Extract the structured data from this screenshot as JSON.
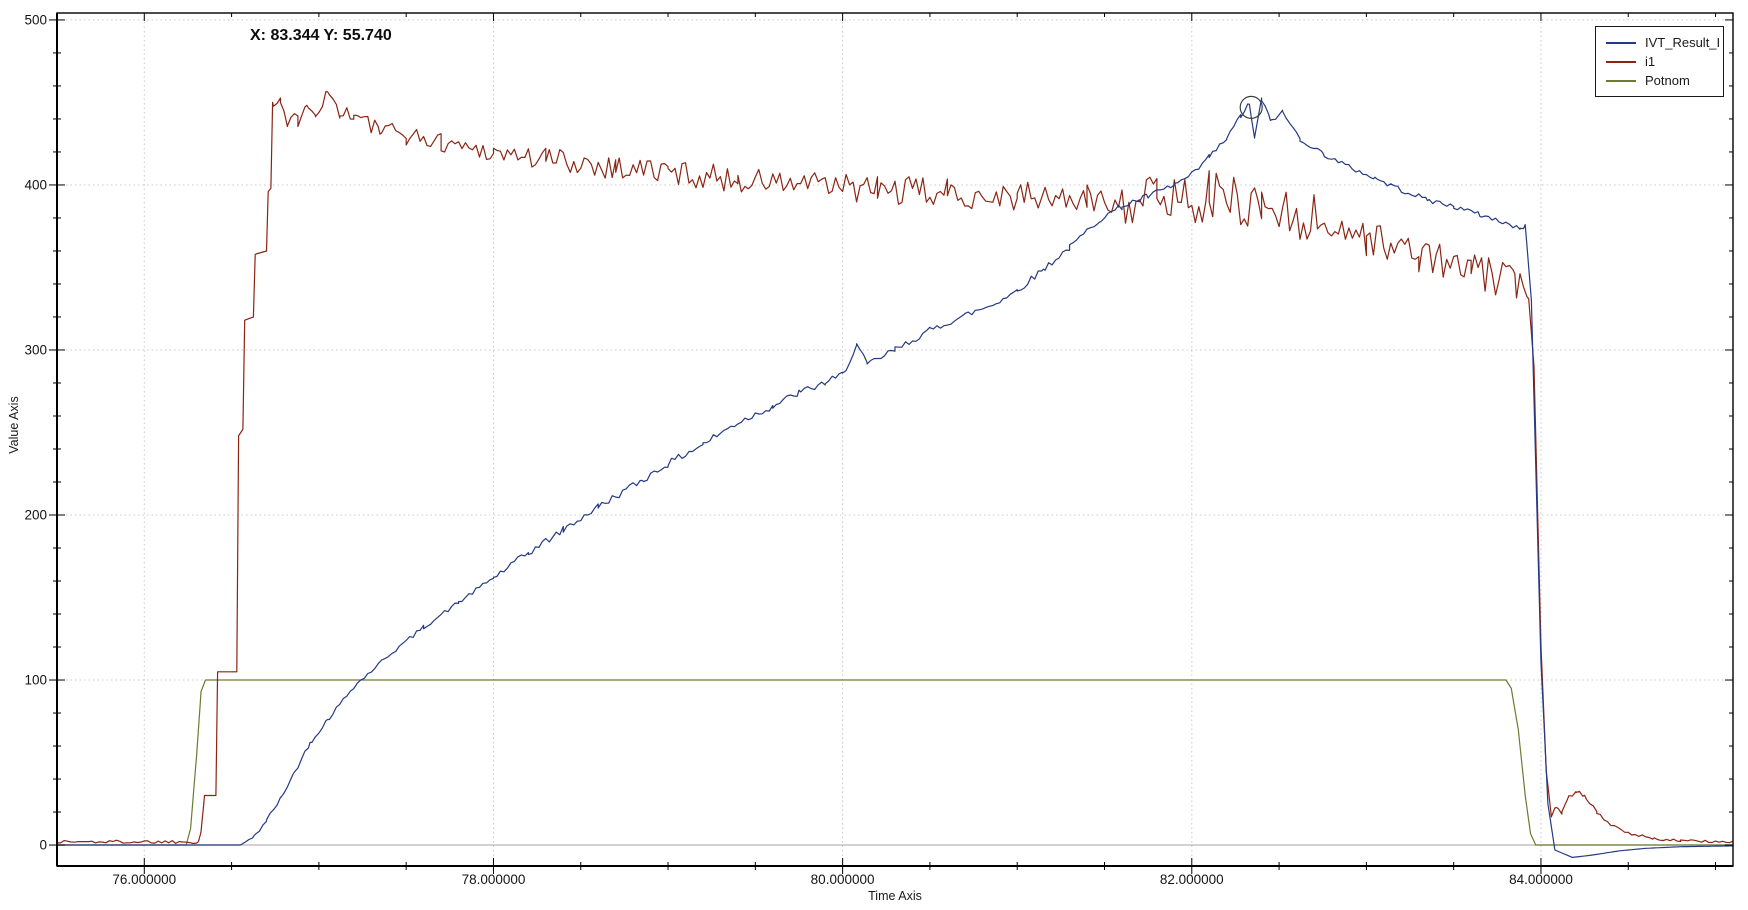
{
  "chart_data": {
    "type": "line",
    "title": "",
    "xlabel": "Time Axis",
    "ylabel": "Value Axis",
    "xlim": [
      75.5,
      85.1
    ],
    "ylim": [
      -12.7,
      504.2
    ],
    "x_major_ticks": [
      76,
      78,
      80,
      82,
      84
    ],
    "x_tick_labels": [
      "76.000000",
      "78.000000",
      "80.000000",
      "82.000000",
      "84.000000"
    ],
    "x_minor_step": 0.5,
    "y_major_ticks": [
      0,
      100,
      200,
      300,
      400,
      500
    ],
    "y_tick_labels": [
      "0",
      "100",
      "200",
      "300",
      "400",
      "500"
    ],
    "y_minor_step": 20,
    "grid": {
      "style": "dotted",
      "color": "#c9c9c9",
      "zero_line_color": "#b8b8b8"
    },
    "legend": {
      "position": "top-right"
    },
    "annotations": {
      "cursor_readout": {
        "text": "X: 83.344 Y: 55.740"
      },
      "marker_circle": {
        "x": 82.34,
        "y": 447,
        "radius_px": 11,
        "color": "#3c3c3c"
      }
    },
    "series": [
      {
        "name": "IVT_Result_I",
        "color": "#253a85",
        "anchors": [
          [
            75.5,
            0
          ],
          [
            76.55,
            0
          ],
          [
            76.63,
            5
          ],
          [
            76.7,
            15
          ],
          [
            76.78,
            28
          ],
          [
            76.85,
            42
          ],
          [
            76.95,
            62
          ],
          [
            77.05,
            76
          ],
          [
            77.2,
            96
          ],
          [
            77.4,
            115
          ],
          [
            77.6,
            132
          ],
          [
            77.8,
            147
          ],
          [
            78.0,
            162
          ],
          [
            78.2,
            177
          ],
          [
            78.4,
            191
          ],
          [
            78.6,
            205
          ],
          [
            78.85,
            221
          ],
          [
            79.0,
            231
          ],
          [
            79.2,
            243
          ],
          [
            79.4,
            256
          ],
          [
            79.6,
            266
          ],
          [
            79.75,
            274
          ],
          [
            79.9,
            280
          ],
          [
            80.0,
            285
          ],
          [
            80.08,
            303
          ],
          [
            80.14,
            291
          ],
          [
            80.3,
            300
          ],
          [
            80.5,
            312
          ],
          [
            80.7,
            321
          ],
          [
            80.85,
            327
          ],
          [
            81.0,
            336
          ],
          [
            81.15,
            349
          ],
          [
            81.3,
            362
          ],
          [
            81.47,
            379
          ],
          [
            81.6,
            387
          ],
          [
            81.75,
            393
          ],
          [
            81.9,
            400
          ],
          [
            82.0,
            406
          ],
          [
            82.1,
            417
          ],
          [
            82.2,
            428
          ],
          [
            82.28,
            442
          ],
          [
            82.33,
            449
          ],
          [
            82.36,
            428
          ],
          [
            82.4,
            452
          ],
          [
            82.45,
            439
          ],
          [
            82.52,
            444
          ],
          [
            82.62,
            428
          ],
          [
            82.75,
            419
          ],
          [
            82.9,
            411
          ],
          [
            83.05,
            404
          ],
          [
            83.2,
            397
          ],
          [
            83.35,
            391
          ],
          [
            83.5,
            387
          ],
          [
            83.65,
            382
          ],
          [
            83.8,
            377
          ],
          [
            83.88,
            373
          ],
          [
            83.91,
            376
          ],
          [
            83.945,
            330
          ],
          [
            84.0,
            110
          ],
          [
            84.04,
            25
          ],
          [
            84.08,
            -3
          ],
          [
            84.18,
            -7.5
          ],
          [
            84.3,
            -6
          ],
          [
            84.45,
            -3.5
          ],
          [
            84.6,
            -2
          ],
          [
            84.8,
            -1
          ],
          [
            85.1,
            -0.5
          ]
        ],
        "noise_segments": [
          [
            76.6,
            78.0,
            1.3
          ],
          [
            78.0,
            80.3,
            2.2
          ],
          [
            80.3,
            82.1,
            2.0
          ],
          [
            82.1,
            83.9,
            1.6
          ]
        ]
      },
      {
        "name": "i1",
        "color": "#8a2413",
        "anchors": [
          [
            75.5,
            2
          ],
          [
            76.31,
            2
          ],
          [
            76.325,
            8
          ],
          [
            76.345,
            30
          ],
          [
            76.41,
            30
          ],
          [
            76.42,
            105
          ],
          [
            76.53,
            105
          ],
          [
            76.54,
            248
          ],
          [
            76.565,
            252
          ],
          [
            76.575,
            318
          ],
          [
            76.625,
            320
          ],
          [
            76.635,
            358
          ],
          [
            76.7,
            360
          ],
          [
            76.71,
            396
          ],
          [
            76.725,
            398
          ],
          [
            76.735,
            450
          ],
          [
            76.78,
            452
          ],
          [
            76.82,
            436
          ],
          [
            76.88,
            440
          ],
          [
            76.93,
            452
          ],
          [
            76.98,
            444
          ],
          [
            77.05,
            456
          ],
          [
            77.12,
            445
          ],
          [
            77.2,
            442
          ],
          [
            77.35,
            433
          ],
          [
            77.5,
            430
          ],
          [
            77.7,
            426
          ],
          [
            78.0,
            420
          ],
          [
            78.3,
            416
          ],
          [
            78.7,
            411
          ],
          [
            79.0,
            408
          ],
          [
            79.4,
            403
          ],
          [
            79.8,
            400
          ],
          [
            80.2,
            397
          ],
          [
            80.6,
            395
          ],
          [
            81.0,
            393
          ],
          [
            81.4,
            391
          ],
          [
            81.8,
            392
          ],
          [
            82.1,
            393
          ],
          [
            82.4,
            388
          ],
          [
            82.7,
            380
          ],
          [
            83.0,
            368
          ],
          [
            83.3,
            358
          ],
          [
            83.6,
            348
          ],
          [
            83.85,
            341
          ],
          [
            83.93,
            331
          ],
          [
            83.96,
            290
          ],
          [
            84.0,
            120
          ],
          [
            84.03,
            45
          ],
          [
            84.06,
            18
          ],
          [
            84.09,
            24
          ],
          [
            84.12,
            20
          ],
          [
            84.15,
            28
          ],
          [
            84.2,
            33
          ],
          [
            84.25,
            30
          ],
          [
            84.32,
            20
          ],
          [
            84.4,
            12
          ],
          [
            84.5,
            7
          ],
          [
            84.65,
            4
          ],
          [
            84.8,
            2.5
          ],
          [
            85.1,
            2
          ]
        ],
        "noise_segments": [
          [
            75.5,
            76.3,
            1.1
          ],
          [
            76.74,
            77.2,
            5
          ],
          [
            77.2,
            78.2,
            6
          ],
          [
            78.2,
            80.0,
            8
          ],
          [
            80.0,
            81.6,
            9
          ],
          [
            81.6,
            82.75,
            16
          ],
          [
            82.75,
            83.9,
            11
          ],
          [
            84.05,
            84.33,
            1.3
          ],
          [
            84.33,
            85.1,
            0.8
          ]
        ]
      },
      {
        "name": "Potnom",
        "color": "#6b7b31",
        "anchors": [
          [
            75.5,
            0
          ],
          [
            76.24,
            0
          ],
          [
            76.265,
            10
          ],
          [
            76.3,
            55
          ],
          [
            76.325,
            93
          ],
          [
            76.35,
            100
          ],
          [
            83.8,
            100
          ],
          [
            83.83,
            95
          ],
          [
            83.87,
            70
          ],
          [
            83.91,
            30
          ],
          [
            83.94,
            7
          ],
          [
            83.97,
            0
          ],
          [
            85.1,
            0
          ]
        ],
        "noise_segments": []
      }
    ]
  }
}
